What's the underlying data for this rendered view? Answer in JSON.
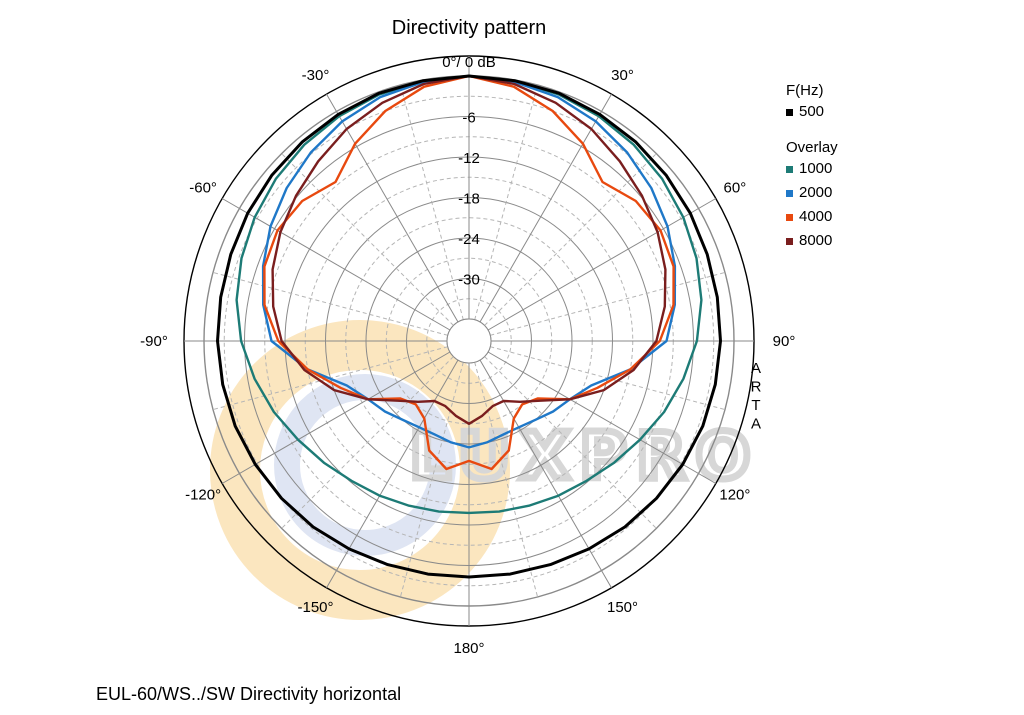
{
  "chart_data": {
    "type": "polar",
    "title": "Directivity pattern",
    "top_label": "0°/ 0 dB",
    "angle_labels": [
      {
        "angle": -30,
        "text": "-30°"
      },
      {
        "angle": 30,
        "text": "30°"
      },
      {
        "angle": -60,
        "text": "-60°"
      },
      {
        "angle": 60,
        "text": "60°"
      },
      {
        "angle": -90,
        "text": "-90°"
      },
      {
        "angle": 90,
        "text": "90°"
      },
      {
        "angle": -120,
        "text": "-120°"
      },
      {
        "angle": 120,
        "text": "120°"
      },
      {
        "angle": -150,
        "text": "-150°"
      },
      {
        "angle": 150,
        "text": "150°"
      },
      {
        "angle": 180,
        "text": "180°"
      }
    ],
    "radial_range_db": [
      -36,
      0
    ],
    "ring_labels": [
      "-6",
      "-12",
      "-18",
      "-24",
      "-30"
    ],
    "ring_values": [
      -6,
      -12,
      -18,
      -24,
      -30
    ],
    "angles_deg": [
      0,
      10,
      20,
      30,
      40,
      50,
      60,
      70,
      80,
      90,
      100,
      110,
      120,
      130,
      140,
      150,
      160,
      170,
      180
    ],
    "series": [
      {
        "name": "500",
        "color": "#000000",
        "db": [
          0,
          -0.1,
          -0.2,
          -0.5,
          -0.8,
          -1.1,
          -1.4,
          -1.7,
          -1.9,
          -2.0,
          -2.2,
          -2.4,
          -2.7,
          -3.0,
          -3.3,
          -3.7,
          -4.0,
          -4.2,
          -4.3
        ]
      },
      {
        "name": "1000",
        "color": "#1d7b76",
        "db": [
          0,
          -0.1,
          -0.4,
          -0.8,
          -1.3,
          -1.9,
          -2.6,
          -3.4,
          -4.3,
          -5.5,
          -7.0,
          -8.5,
          -10.0,
          -11.2,
          -12.2,
          -12.8,
          -13.3,
          -13.6,
          -13.8
        ]
      },
      {
        "name": "2000",
        "color": "#1f78c8",
        "db": [
          0,
          -0.3,
          -0.8,
          -1.7,
          -2.8,
          -4.0,
          -5.3,
          -6.8,
          -8.3,
          -10.0,
          -15.0,
          -20.0,
          -22.0,
          -23.0,
          -24.0,
          -24.5,
          -24.5,
          -24.0,
          -23.5
        ]
      },
      {
        "name": "4000",
        "color": "#e8490f",
        "db": [
          0,
          -1.0,
          -3.0,
          -5.5,
          -8.5,
          -7.0,
          -6.5,
          -7.0,
          -8.5,
          -11.0,
          -15.0,
          -19.0,
          -22.0,
          -26.0,
          -27.0,
          -26.0,
          -22.0,
          -20.0,
          -21.5
        ]
      },
      {
        "name": "8000",
        "color": "#7a1e1e",
        "db": [
          0,
          -0.6,
          -1.7,
          -3.0,
          -4.5,
          -5.8,
          -7.0,
          -8.3,
          -9.8,
          -11.5,
          -14.5,
          -18.0,
          -22.0,
          -25.5,
          -27.5,
          -29.0,
          -29.0,
          -28.0,
          -27.0
        ]
      }
    ],
    "legend": {
      "header": "F(Hz)",
      "primary": "500",
      "overlay_header": "Overlay",
      "overlays": [
        "1000",
        "2000",
        "4000",
        "8000"
      ]
    },
    "side_text": [
      "A",
      "R",
      "T",
      "A"
    ],
    "watermark_text": "LUXPRO",
    "caption": "EUL-60/WS../SW Directivity horizontal"
  }
}
